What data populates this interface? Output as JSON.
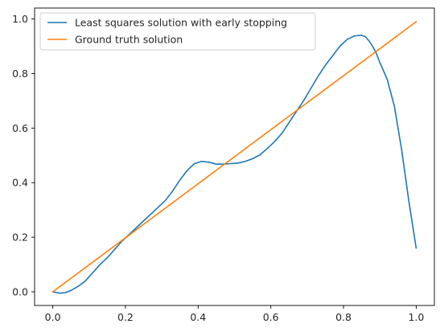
{
  "chart_data": {
    "type": "line",
    "title": "",
    "xlabel": "",
    "ylabel": "",
    "xlim": [
      -0.05,
      1.05
    ],
    "ylim": [
      -0.05,
      1.04
    ],
    "xticks": [
      0.0,
      0.2,
      0.4,
      0.6,
      0.8,
      1.0
    ],
    "yticks": [
      0.0,
      0.2,
      0.4,
      0.6,
      0.8,
      1.0
    ],
    "grid": false,
    "legend_position": "top-left",
    "series": [
      {
        "name": "Least squares solution with early stopping",
        "color": "#1f77b4",
        "x": [
          0.0,
          0.02,
          0.035,
          0.05,
          0.07,
          0.09,
          0.11,
          0.13,
          0.15,
          0.17,
          0.19,
          0.21,
          0.23,
          0.25,
          0.27,
          0.29,
          0.31,
          0.33,
          0.35,
          0.37,
          0.39,
          0.41,
          0.43,
          0.45,
          0.47,
          0.49,
          0.51,
          0.53,
          0.55,
          0.57,
          0.59,
          0.61,
          0.63,
          0.65,
          0.67,
          0.69,
          0.71,
          0.73,
          0.75,
          0.77,
          0.79,
          0.81,
          0.83,
          0.85,
          0.86,
          0.87,
          0.88,
          0.89,
          0.9,
          0.92,
          0.94,
          0.96,
          0.98,
          1.0
        ],
        "y": [
          0.0,
          -0.005,
          -0.003,
          0.005,
          0.02,
          0.04,
          0.07,
          0.1,
          0.125,
          0.155,
          0.185,
          0.21,
          0.235,
          0.26,
          0.285,
          0.31,
          0.335,
          0.37,
          0.41,
          0.445,
          0.47,
          0.478,
          0.475,
          0.468,
          0.468,
          0.47,
          0.472,
          0.478,
          0.488,
          0.502,
          0.525,
          0.55,
          0.58,
          0.62,
          0.66,
          0.7,
          0.745,
          0.79,
          0.83,
          0.865,
          0.9,
          0.925,
          0.938,
          0.94,
          0.935,
          0.92,
          0.9,
          0.875,
          0.84,
          0.78,
          0.68,
          0.52,
          0.33,
          0.16
        ]
      },
      {
        "name": "Ground truth solution",
        "color": "#ff7f0e",
        "x": [
          0.0,
          1.0
        ],
        "y": [
          0.0,
          0.99
        ]
      }
    ]
  }
}
